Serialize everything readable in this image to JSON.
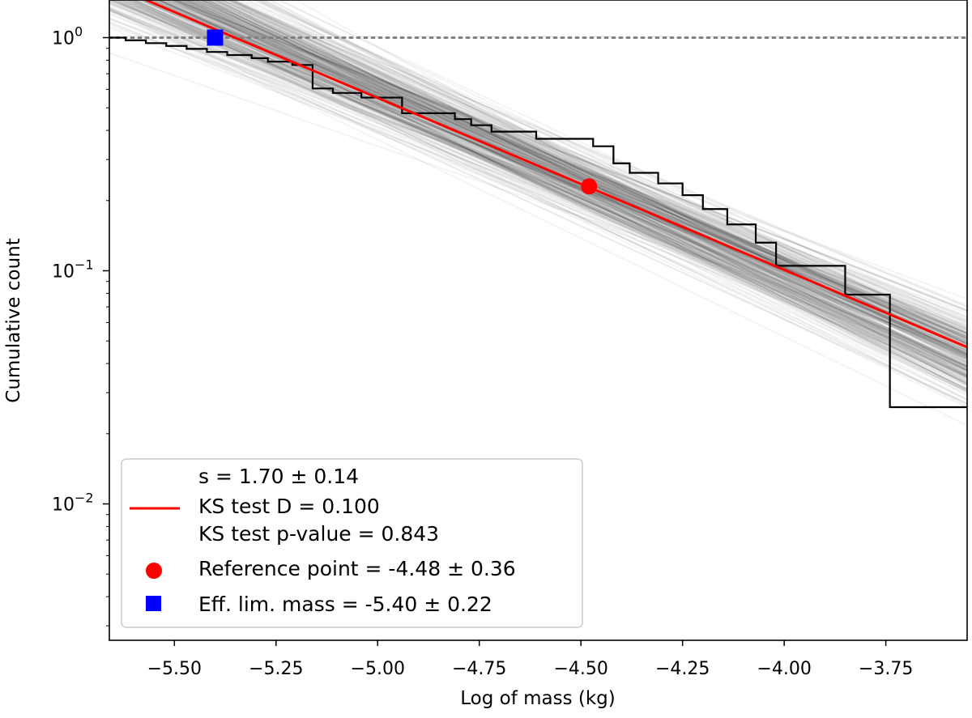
{
  "chart_data": {
    "type": "line",
    "xlabel": "Log of mass (kg)",
    "ylabel": "Cumulative count",
    "xlim": [
      -5.66,
      -3.55
    ],
    "ylim": [
      0.0026,
      1.45
    ],
    "yscale": "log",
    "x_ticks": [
      -5.5,
      -5.25,
      -5.0,
      -4.75,
      -4.5,
      -4.25,
      -4.0,
      -3.75
    ],
    "x_tick_labels": [
      "−5.50",
      "−5.25",
      "−5.00",
      "−4.75",
      "−4.50",
      "−4.25",
      "−4.00",
      "−3.75"
    ],
    "y_ticks": [
      {
        "value": 1,
        "base": "10",
        "exp": "0"
      },
      {
        "value": 0.1,
        "base": "10",
        "exp": "−1"
      },
      {
        "value": 0.01,
        "base": "10",
        "exp": "−2"
      }
    ],
    "reference_line": {
      "y": 1.0,
      "style": "dotted",
      "color": "#808080"
    },
    "fit": {
      "label": "s = 1.70 ± 0.14",
      "color": "#ff0000",
      "x": [
        -5.66,
        -3.55
      ],
      "y": [
        1.69,
        0.047
      ]
    },
    "cumulative_histogram": {
      "color": "#000000",
      "x": [
        -5.66,
        -5.62,
        -5.57,
        -5.52,
        -5.47,
        -5.42,
        -5.37,
        -5.31,
        -5.27,
        -5.21,
        -5.16,
        -5.11,
        -5.04,
        -4.94,
        -4.87,
        -4.81,
        -4.77,
        -4.72,
        -4.61,
        -4.47,
        -4.42,
        -4.38,
        -4.31,
        -4.25,
        -4.2,
        -4.14,
        -4.07,
        -4.02,
        -3.95,
        -3.91,
        -3.85,
        -3.8,
        -3.74,
        -3.55
      ],
      "y": [
        1.0,
        0.974,
        0.947,
        0.921,
        0.895,
        0.868,
        0.842,
        0.816,
        0.789,
        0.763,
        0.605,
        0.579,
        0.553,
        0.474,
        0.474,
        0.447,
        0.421,
        0.395,
        0.368,
        0.342,
        0.289,
        0.263,
        0.237,
        0.211,
        0.184,
        0.158,
        0.132,
        0.105,
        0.105,
        0.105,
        0.079,
        0.079,
        0.026,
        0.026
      ]
    },
    "bootstrap_fits": {
      "count": 300,
      "color": "#000000",
      "slope_mean": -0.779,
      "slope_sd": 0.064,
      "pivot_x": -4.48,
      "pivot_log10y_mean": -0.64,
      "pivot_log10y_sd": 0.07
    },
    "reference_point": {
      "label": "Reference point = -4.48 ± 0.36",
      "x": -4.48,
      "y": 0.23,
      "color": "#ff0000",
      "marker": "circle"
    },
    "eff_lim_mass": {
      "label": "Eff. lim. mass = -5.40 ± 0.22",
      "x": -5.4,
      "y": 1.0,
      "color": "#0000ff",
      "marker": "square"
    },
    "legend": {
      "position": "lower-left",
      "fit_lines": [
        "s = 1.70 ± 0.14",
        "KS test D = 0.100",
        "KS test p-value = 0.843"
      ],
      "point_label": "Reference point = -4.48 ± 0.36",
      "square_label": "Eff. lim. mass = -5.40 ± 0.22"
    }
  }
}
